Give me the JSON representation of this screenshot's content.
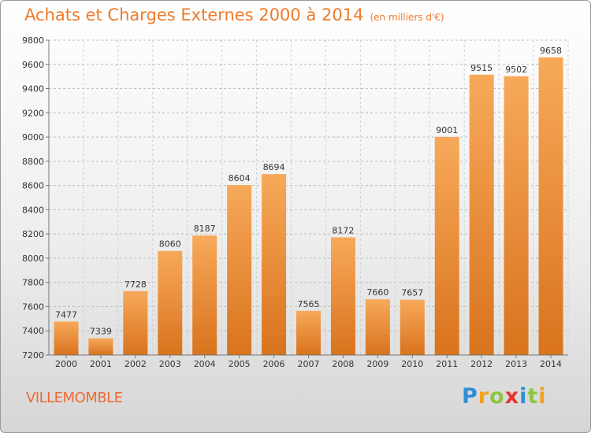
{
  "header": {
    "title": "Achats et Charges Externes 2000 à 2014",
    "subtitle": "(en milliers d'€)"
  },
  "place": "VILLEMOMBLE",
  "logo": {
    "text": "Proxiti",
    "letters": [
      {
        "ch": "P",
        "color": "#2f8fd6"
      },
      {
        "ch": "r",
        "color": "#f4a21b"
      },
      {
        "ch": "o",
        "color": "#8cc63f"
      },
      {
        "ch": "x",
        "color": "#e8352b"
      },
      {
        "ch": "i",
        "color": "#2f8fd6"
      },
      {
        "ch": "t",
        "color": "#8cc63f"
      },
      {
        "ch": "i",
        "color": "#f4a21b"
      }
    ]
  },
  "colors": {
    "accent": "#ee7a2a",
    "bar_light": "#f7a95a",
    "bar_dark": "#d9731d"
  },
  "chart_data": {
    "type": "bar",
    "title": "Achats et Charges Externes 2000 à 2014",
    "subtitle": "(en milliers d'€)",
    "categories": [
      "2000",
      "2001",
      "2002",
      "2003",
      "2004",
      "2005",
      "2006",
      "2007",
      "2008",
      "2009",
      "2010",
      "2011",
      "2012",
      "2013",
      "2014"
    ],
    "values": [
      7477,
      7339,
      7728,
      8060,
      8187,
      8604,
      8694,
      7565,
      8172,
      7660,
      7657,
      9001,
      9515,
      9502,
      9658
    ],
    "ylim": [
      7200,
      9800
    ],
    "yticks": [
      7200,
      7400,
      7600,
      7800,
      8000,
      8200,
      8400,
      8600,
      8800,
      9000,
      9200,
      9400,
      9600,
      9800
    ],
    "grid": true,
    "legend": "none"
  }
}
